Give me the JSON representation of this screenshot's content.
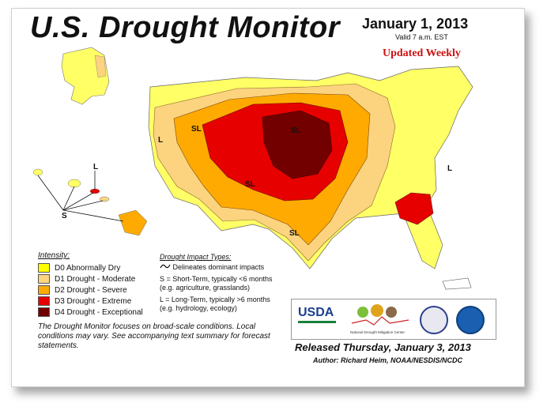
{
  "header": {
    "title": "U.S. Drought Monitor",
    "date": "January 1, 2013",
    "valid": "Valid 7 a.m. EST",
    "updated": "Updated Weekly"
  },
  "legend": {
    "title": "Intensity:",
    "items": [
      {
        "label": "D0 Abnormally Dry",
        "color": "#ffff00"
      },
      {
        "label": "D1 Drought - Moderate",
        "color": "#fcd37f"
      },
      {
        "label": "D2 Drought - Severe",
        "color": "#ffaa00"
      },
      {
        "label": "D3 Drought - Extreme",
        "color": "#e60000"
      },
      {
        "label": "D4 Drought - Exceptional",
        "color": "#730000"
      }
    ]
  },
  "impact": {
    "title": "Drought Impact Types:",
    "line": "Delineates dominant impacts",
    "s1": "S = Short-Term, typically <6 months",
    "s2": "(e.g. agriculture, grasslands)",
    "l1": "L = Long-Term, typically >6 months",
    "l2": "(e.g. hydrology, ecology)"
  },
  "map_labels": {
    "sl": "SL",
    "s": "S",
    "l": "L"
  },
  "note": "The Drought Monitor focuses on broad-scale conditions. Local conditions may vary. See accompanying text summary for forecast statements.",
  "logos": {
    "usda": "USDA",
    "ndmc": "National Drought Mitigation Center"
  },
  "footer": {
    "released": "Released Thursday, January 3, 2013",
    "author": "Author: Richard Heim, NOAA/NESDIS/NCDC"
  }
}
